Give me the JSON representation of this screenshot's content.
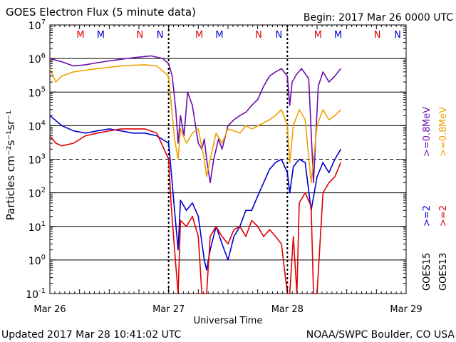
{
  "header": {
    "title": "GOES Electron Flux (5 minute data)",
    "begin": "Begin: 2017 Mar 26 0000 UTC"
  },
  "footer": {
    "updated": "Updated 2017 Mar 28 10:41:02 UTC",
    "credit": "NOAA/SWPC Boulder, CO USA"
  },
  "chart_data": {
    "type": "line",
    "title": "GOES Electron Flux (5 minute data)",
    "xlabel": "Universal Time",
    "ylabel": "Particles cm⁻²s⁻¹sr⁻¹",
    "yscale": "log",
    "ylim": [
      0.1,
      10000000
    ],
    "xlim": [
      0,
      3
    ],
    "x_unit": "days since 2017 Mar 26 0000 UTC",
    "x_ticks": [
      {
        "value": 0,
        "label": "Mar 26"
      },
      {
        "value": 1,
        "label": "Mar 27"
      },
      {
        "value": 2,
        "label": "Mar 28"
      },
      {
        "value": 3,
        "label": "Mar 29"
      }
    ],
    "y_ticks": [
      {
        "value": 0.1,
        "base": "10",
        "exp": "-1"
      },
      {
        "value": 1,
        "base": "10",
        "exp": "0"
      },
      {
        "value": 10,
        "base": "10",
        "exp": "1"
      },
      {
        "value": 100,
        "base": "10",
        "exp": "2"
      },
      {
        "value": 1000,
        "base": "10",
        "exp": "3"
      },
      {
        "value": 10000,
        "base": "10",
        "exp": "4"
      },
      {
        "value": 100000,
        "base": "10",
        "exp": "5"
      },
      {
        "value": 1000000,
        "base": "10",
        "exp": "6"
      },
      {
        "value": 10000000,
        "base": "10",
        "exp": "7"
      }
    ],
    "grid_solid": [
      1,
      10,
      100,
      10000,
      100000,
      1000000
    ],
    "threshold": {
      "value": 1000,
      "style": "dashed"
    },
    "day_boundaries": [
      1,
      2
    ],
    "markers": [
      {
        "x": 0.33,
        "label": "M",
        "color": "#e00000"
      },
      {
        "x": 0.5,
        "label": "M",
        "color": "#0000d0"
      },
      {
        "x": 0.83,
        "label": "N",
        "color": "#e00000"
      },
      {
        "x": 1.0,
        "label": "N",
        "color": "#0000d0"
      },
      {
        "x": 1.33,
        "label": "M",
        "color": "#e00000"
      },
      {
        "x": 1.5,
        "label": "M",
        "color": "#0000d0"
      },
      {
        "x": 1.83,
        "label": "N",
        "color": "#e00000"
      },
      {
        "x": 2.0,
        "label": "N",
        "color": "#0000d0"
      },
      {
        "x": 2.33,
        "label": "M",
        "color": "#e00000"
      },
      {
        "x": 2.5,
        "label": "M",
        "color": "#0000d0"
      },
      {
        "x": 2.83,
        "label": "N",
        "color": "#e00000"
      },
      {
        "x": 3.0,
        "label": "N",
        "color": "#0000d0"
      }
    ],
    "legend": {
      "placement": "right",
      "goes15": "GOES15",
      "goes13": "GOES13",
      "entries": [
        {
          "text": ">=2",
          "color": "#0000d0"
        },
        {
          "text": ">=2",
          "color": "#e00000"
        },
        {
          "text": ">=0.8",
          "color": "#6a0dad"
        },
        {
          "text": ">=0.8",
          "color": "#f0a000"
        }
      ],
      "unit": "MeV"
    },
    "series": [
      {
        "name": "GOES15 >=0.8 MeV",
        "color": "#6a0dad",
        "points": [
          [
            0,
            1000000
          ],
          [
            0.1,
            800000
          ],
          [
            0.2,
            600000
          ],
          [
            0.3,
            650000
          ],
          [
            0.4,
            750000
          ],
          [
            0.5,
            850000
          ],
          [
            0.6,
            950000
          ],
          [
            0.7,
            1050000
          ],
          [
            0.8,
            1150000
          ],
          [
            0.85,
            1200000
          ],
          [
            0.95,
            1000000
          ],
          [
            1.0,
            700000
          ],
          [
            1.03,
            300000
          ],
          [
            1.06,
            30000
          ],
          [
            1.08,
            3000
          ],
          [
            1.1,
            20000
          ],
          [
            1.13,
            5000
          ],
          [
            1.16,
            100000
          ],
          [
            1.2,
            40000
          ],
          [
            1.25,
            3000
          ],
          [
            1.28,
            2000
          ],
          [
            1.3,
            4000
          ],
          [
            1.32,
            1000
          ],
          [
            1.35,
            200
          ],
          [
            1.38,
            1000
          ],
          [
            1.42,
            4000
          ],
          [
            1.45,
            2000
          ],
          [
            1.5,
            10000
          ],
          [
            1.55,
            15000
          ],
          [
            1.6,
            20000
          ],
          [
            1.65,
            25000
          ],
          [
            1.7,
            40000
          ],
          [
            1.75,
            60000
          ],
          [
            1.8,
            150000
          ],
          [
            1.85,
            300000
          ],
          [
            1.9,
            400000
          ],
          [
            1.95,
            500000
          ],
          [
            2.0,
            300000
          ],
          [
            2.02,
            40000
          ],
          [
            2.04,
            200000
          ],
          [
            2.08,
            350000
          ],
          [
            2.12,
            500000
          ],
          [
            2.18,
            250000
          ],
          [
            2.22,
            200
          ],
          [
            2.26,
            150000
          ],
          [
            2.3,
            400000
          ],
          [
            2.35,
            200000
          ],
          [
            2.4,
            300000
          ],
          [
            2.45,
            500000
          ]
        ]
      },
      {
        "name": "GOES13 >=0.8 MeV",
        "color": "#f0a000",
        "points": [
          [
            0,
            500000
          ],
          [
            0.05,
            200000
          ],
          [
            0.1,
            300000
          ],
          [
            0.2,
            400000
          ],
          [
            0.3,
            450000
          ],
          [
            0.4,
            500000
          ],
          [
            0.5,
            550000
          ],
          [
            0.6,
            600000
          ],
          [
            0.7,
            630000
          ],
          [
            0.8,
            650000
          ],
          [
            0.9,
            600000
          ],
          [
            1.0,
            300000
          ],
          [
            1.02,
            50000
          ],
          [
            1.05,
            4000
          ],
          [
            1.08,
            1000
          ],
          [
            1.1,
            8000
          ],
          [
            1.15,
            3000
          ],
          [
            1.2,
            6000
          ],
          [
            1.25,
            8000
          ],
          [
            1.3,
            1000
          ],
          [
            1.32,
            300
          ],
          [
            1.35,
            1000
          ],
          [
            1.4,
            6000
          ],
          [
            1.45,
            3000
          ],
          [
            1.5,
            8000
          ],
          [
            1.6,
            6000
          ],
          [
            1.65,
            10000
          ],
          [
            1.7,
            8000
          ],
          [
            1.8,
            12000
          ],
          [
            1.85,
            15000
          ],
          [
            1.9,
            20000
          ],
          [
            1.95,
            30000
          ],
          [
            2.0,
            10000
          ],
          [
            2.02,
            800
          ],
          [
            2.05,
            10000
          ],
          [
            2.1,
            30000
          ],
          [
            2.15,
            15000
          ],
          [
            2.2,
            200
          ],
          [
            2.25,
            10000
          ],
          [
            2.3,
            30000
          ],
          [
            2.35,
            15000
          ],
          [
            2.4,
            20000
          ],
          [
            2.45,
            30000
          ]
        ]
      },
      {
        "name": "GOES15 >=2 MeV",
        "color": "#0000d0",
        "points": [
          [
            0,
            20000
          ],
          [
            0.1,
            10000
          ],
          [
            0.2,
            7000
          ],
          [
            0.3,
            6000
          ],
          [
            0.4,
            7000
          ],
          [
            0.5,
            8000
          ],
          [
            0.6,
            7000
          ],
          [
            0.7,
            6000
          ],
          [
            0.8,
            6000
          ],
          [
            0.9,
            5000
          ],
          [
            1.0,
            3000
          ],
          [
            1.02,
            500
          ],
          [
            1.05,
            30
          ],
          [
            1.08,
            2
          ],
          [
            1.1,
            60
          ],
          [
            1.15,
            30
          ],
          [
            1.2,
            50
          ],
          [
            1.25,
            20
          ],
          [
            1.3,
            1
          ],
          [
            1.32,
            0.5
          ],
          [
            1.35,
            2
          ],
          [
            1.4,
            10
          ],
          [
            1.45,
            3
          ],
          [
            1.5,
            1
          ],
          [
            1.55,
            5
          ],
          [
            1.6,
            10
          ],
          [
            1.65,
            30
          ],
          [
            1.7,
            30
          ],
          [
            1.75,
            80
          ],
          [
            1.8,
            200
          ],
          [
            1.85,
            500
          ],
          [
            1.9,
            800
          ],
          [
            1.95,
            1000
          ],
          [
            2.0,
            400
          ],
          [
            2.02,
            100
          ],
          [
            2.05,
            600
          ],
          [
            2.1,
            1000
          ],
          [
            2.15,
            800
          ],
          [
            2.2,
            30
          ],
          [
            2.25,
            300
          ],
          [
            2.3,
            800
          ],
          [
            2.35,
            400
          ],
          [
            2.4,
            1000
          ],
          [
            2.45,
            2000
          ]
        ]
      },
      {
        "name": "GOES13 >=2 MeV",
        "color": "#e00000",
        "points": [
          [
            0,
            5000
          ],
          [
            0.05,
            3000
          ],
          [
            0.1,
            2500
          ],
          [
            0.2,
            3000
          ],
          [
            0.3,
            5000
          ],
          [
            0.4,
            6000
          ],
          [
            0.5,
            7000
          ],
          [
            0.6,
            8000
          ],
          [
            0.7,
            8000
          ],
          [
            0.8,
            8000
          ],
          [
            0.9,
            6000
          ],
          [
            1.0,
            1000
          ],
          [
            1.02,
            50
          ],
          [
            1.05,
            2
          ],
          [
            1.08,
            0.1
          ],
          [
            1.1,
            15
          ],
          [
            1.15,
            10
          ],
          [
            1.2,
            20
          ],
          [
            1.25,
            5
          ],
          [
            1.28,
            0.1
          ],
          [
            1.32,
            0.1
          ],
          [
            1.35,
            5
          ],
          [
            1.4,
            10
          ],
          [
            1.45,
            5
          ],
          [
            1.5,
            3
          ],
          [
            1.55,
            8
          ],
          [
            1.6,
            10
          ],
          [
            1.65,
            5
          ],
          [
            1.7,
            15
          ],
          [
            1.75,
            10
          ],
          [
            1.8,
            5
          ],
          [
            1.85,
            8
          ],
          [
            1.9,
            5
          ],
          [
            1.95,
            3
          ],
          [
            2.0,
            0.1
          ],
          [
            2.02,
            0.1
          ],
          [
            2.05,
            5
          ],
          [
            2.08,
            0.1
          ],
          [
            2.1,
            50
          ],
          [
            2.15,
            100
          ],
          [
            2.2,
            40
          ],
          [
            2.22,
            0.1
          ],
          [
            2.25,
            0.1
          ],
          [
            2.3,
            100
          ],
          [
            2.35,
            200
          ],
          [
            2.4,
            300
          ],
          [
            2.45,
            800
          ]
        ]
      }
    ]
  }
}
